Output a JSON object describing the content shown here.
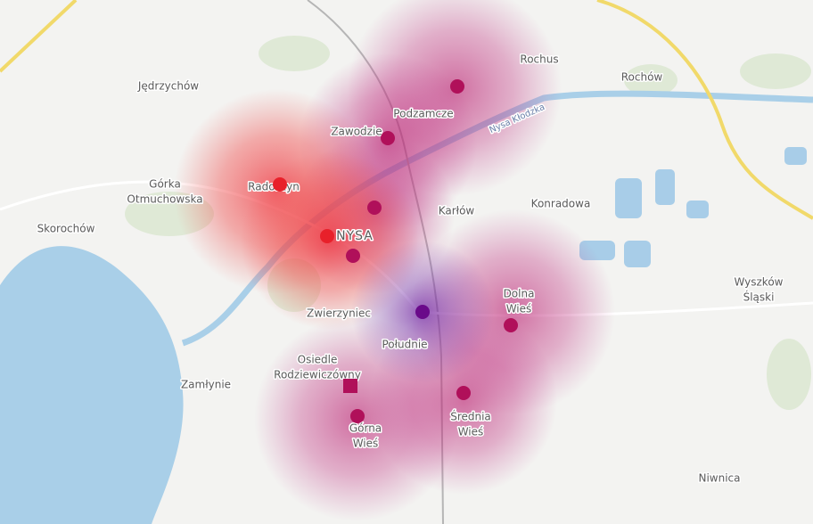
{
  "labels": [
    {
      "lines": [
        "Jędrzychów"
      ]
    },
    {
      "lines": [
        "Rochus"
      ]
    },
    {
      "lines": [
        "Rochów"
      ]
    },
    {
      "lines": [
        "Podzamcze"
      ]
    },
    {
      "lines": [
        "Zawodzie"
      ]
    },
    {
      "lines": [
        "Nysa Kłodzka"
      ]
    },
    {
      "lines": [
        "Górka",
        "Otmuchowska"
      ]
    },
    {
      "lines": [
        "Radoszyn"
      ]
    },
    {
      "lines": [
        "Karłów"
      ]
    },
    {
      "lines": [
        "Konradowa"
      ]
    },
    {
      "lines": [
        "Skorochów"
      ]
    },
    {
      "lines": [
        "NYSA"
      ]
    },
    {
      "lines": [
        "Dolna",
        "Wieś"
      ]
    },
    {
      "lines": [
        "Wyszków",
        "Śląski"
      ]
    },
    {
      "lines": [
        "Zwierzyniec"
      ]
    },
    {
      "lines": [
        "Południe"
      ]
    },
    {
      "lines": [
        "Osiedle",
        "Rodziewiczówny"
      ]
    },
    {
      "lines": [
        "Zamłynie"
      ]
    },
    {
      "lines": [
        "Średnia",
        "Wieś"
      ]
    },
    {
      "lines": [
        "Górna",
        "Wieś"
      ]
    },
    {
      "lines": [
        "Niwnica"
      ]
    }
  ]
}
